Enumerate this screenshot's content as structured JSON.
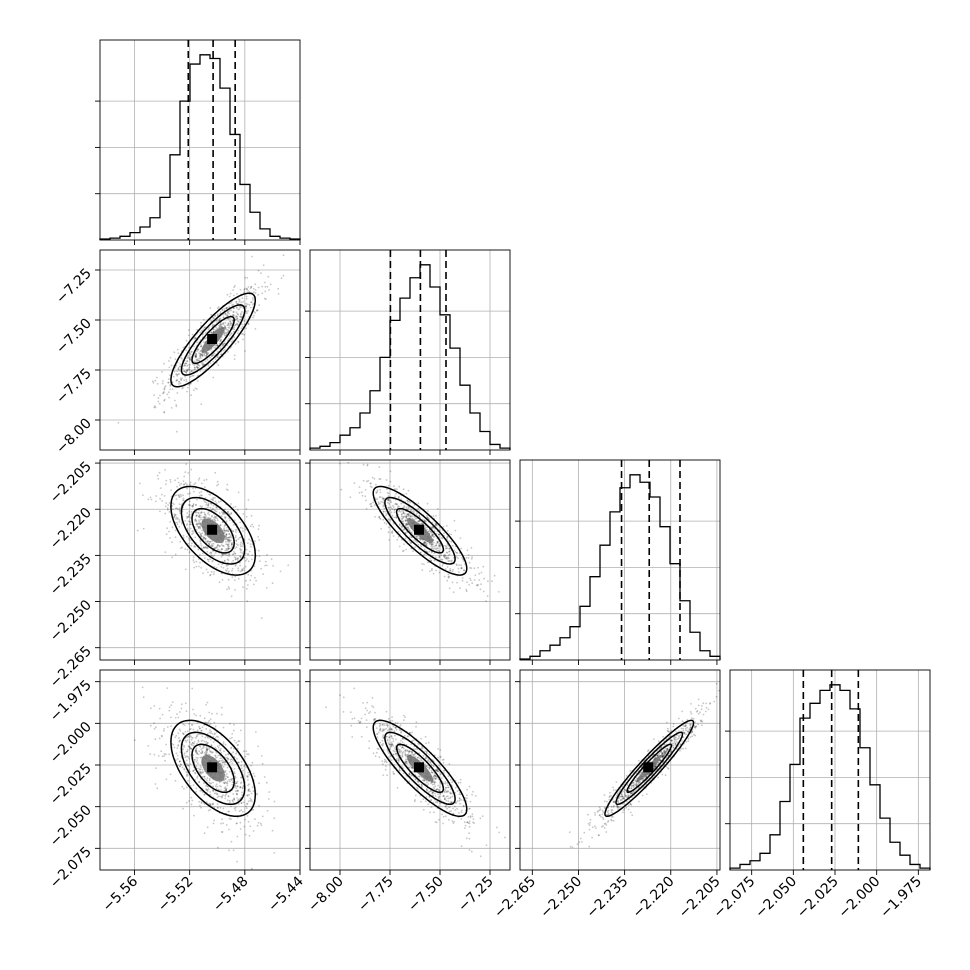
{
  "chart_data": {
    "type": "corner",
    "grid": true,
    "parameters": [
      {
        "range": [
          -5.585,
          -5.44
        ],
        "ticks": [
          -5.56,
          -5.52,
          -5.48,
          -5.44
        ],
        "tick_labels": [
          "−5.56",
          "−5.52",
          "−5.48",
          "−5.44"
        ],
        "mean": -5.503,
        "sd": 0.017,
        "quantiles": [
          -5.521,
          -5.503,
          -5.487
        ],
        "hist": [
          0.005,
          0.01,
          0.02,
          0.04,
          0.07,
          0.12,
          0.23,
          0.46,
          0.75,
          0.95,
          1.0,
          0.98,
          0.82,
          0.57,
          0.3,
          0.15,
          0.06,
          0.02,
          0.01,
          0.005
        ]
      },
      {
        "range": [
          -8.15,
          -7.15
        ],
        "ticks": [
          -8.0,
          -7.75,
          -7.5,
          -7.25
        ],
        "tick_labels": [
          "−8.00",
          "−7.75",
          "−7.50",
          "−7.25"
        ],
        "mean": -7.6,
        "sd": 0.13,
        "quantiles": [
          -7.748,
          -7.598,
          -7.47
        ],
        "hist": [
          0.01,
          0.02,
          0.04,
          0.08,
          0.12,
          0.2,
          0.32,
          0.5,
          0.7,
          0.82,
          0.93,
          1.0,
          0.88,
          0.73,
          0.55,
          0.35,
          0.2,
          0.1,
          0.03,
          0.01
        ]
      },
      {
        "range": [
          -2.269,
          -2.204
        ],
        "ticks": [
          -2.265,
          -2.25,
          -2.235,
          -2.22,
          -2.205
        ],
        "tick_labels": [
          "−2.265",
          "−2.250",
          "−2.235",
          "−2.220",
          "−2.205"
        ],
        "mean": -2.227,
        "sd": 0.008,
        "quantiles": [
          -2.236,
          -2.227,
          -2.217
        ],
        "hist": [
          0.005,
          0.02,
          0.05,
          0.08,
          0.12,
          0.18,
          0.29,
          0.45,
          0.62,
          0.8,
          0.93,
          1.0,
          0.96,
          0.88,
          0.72,
          0.52,
          0.32,
          0.15,
          0.05,
          0.02
        ]
      },
      {
        "range": [
          -2.088,
          -1.968
        ],
        "ticks": [
          -2.075,
          -2.05,
          -2.025,
          -2.0,
          -1.975
        ],
        "tick_labels": [
          "−2.075",
          "−2.050",
          "−2.025",
          "−2.000",
          "−1.975"
        ],
        "mean": -2.027,
        "sd": 0.016,
        "quantiles": [
          -2.044,
          -2.027,
          -2.011
        ],
        "hist": [
          0.01,
          0.03,
          0.05,
          0.09,
          0.19,
          0.37,
          0.57,
          0.82,
          0.9,
          0.97,
          1.0,
          0.97,
          0.87,
          0.66,
          0.46,
          0.28,
          0.15,
          0.08,
          0.03,
          0.01
        ]
      }
    ],
    "correlations": [
      [
        1.0,
        0.85,
        -0.55,
        -0.55
      ],
      [
        0.85,
        1.0,
        -0.85,
        -0.85
      ],
      [
        -0.55,
        -0.85,
        1.0,
        0.95
      ],
      [
        -0.55,
        -0.85,
        0.95,
        1.0
      ]
    ]
  }
}
